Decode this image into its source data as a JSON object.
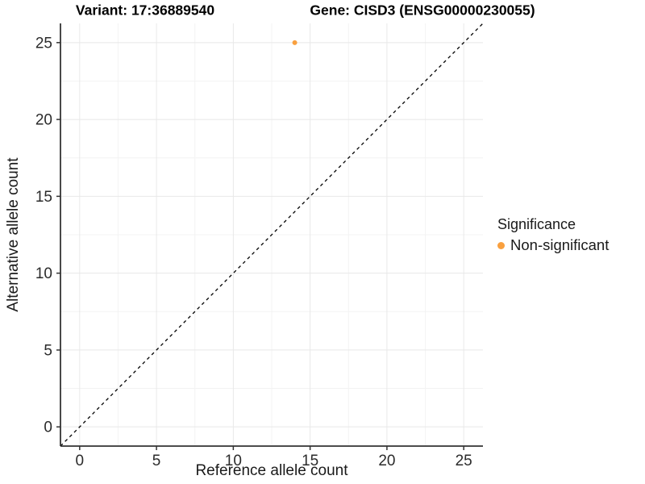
{
  "chart_data": {
    "type": "scatter",
    "title_left": "Variant: 17:36889540",
    "title_right": "Gene: CISD3 (ENSG00000230055)",
    "xlabel": "Reference allele count",
    "ylabel": "Alternative allele count",
    "xlim": [
      -1.25,
      26.25
    ],
    "ylim": [
      -1.25,
      26.25
    ],
    "xticks": [
      0,
      5,
      10,
      15,
      20,
      25
    ],
    "yticks": [
      0,
      5,
      10,
      15,
      20,
      25
    ],
    "minor_ticks_x": [
      2.5,
      7.5,
      12.5,
      17.5,
      22.5
    ],
    "minor_ticks_y": [
      2.5,
      7.5,
      12.5,
      17.5,
      22.5
    ],
    "grid": "major+minor",
    "points": [
      {
        "x": 14,
        "y": 25,
        "series": "Non-significant",
        "color": "#F9A03F",
        "radius": 3
      }
    ],
    "reference_line": {
      "type": "identity",
      "style": "dashed",
      "color": "#000000",
      "dash": "4 4"
    },
    "legend": {
      "title": "Significance",
      "position": "right",
      "items": [
        {
          "label": "Non-significant",
          "color": "#F9A03F",
          "marker": "circle"
        }
      ]
    }
  },
  "colors": {
    "background": "#FFFFFF",
    "grid_major": "#E8E8E8",
    "grid_minor": "#F3F3F3",
    "axis_line": "#333333",
    "tick_mark": "#333333",
    "tick_text": "#2B2B2B",
    "title_text": "#000000",
    "point": "#F9A03F"
  }
}
